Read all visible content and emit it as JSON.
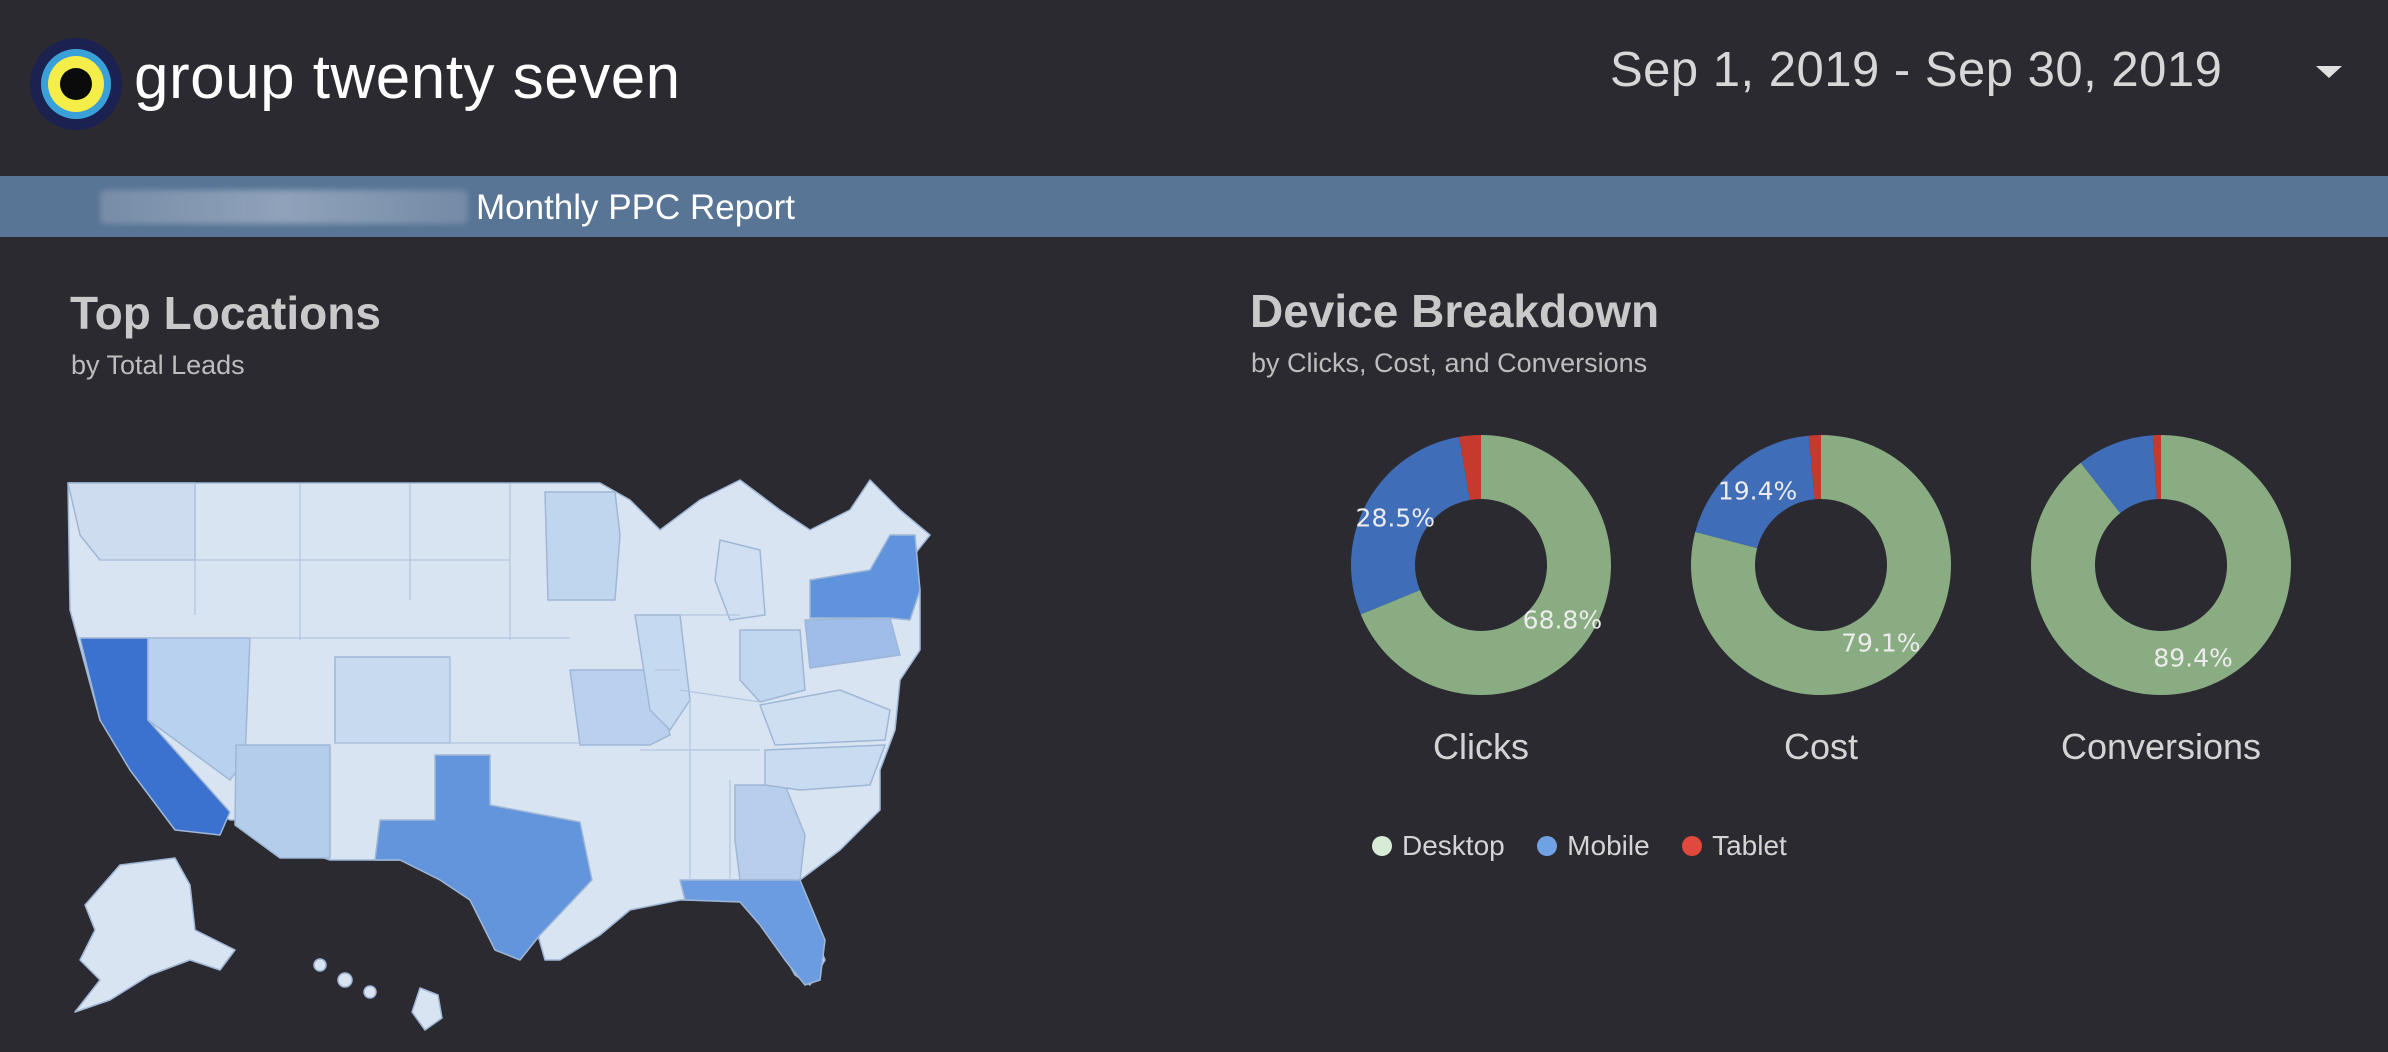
{
  "header": {
    "brand_name": "group twenty seven",
    "date_range": "Sep 1, 2019 - Sep 30, 2019"
  },
  "banner": {
    "title": "Monthly PPC Report"
  },
  "top_locations": {
    "title": "Top Locations",
    "subtitle": "by Total Leads"
  },
  "device_breakdown": {
    "title": "Device Breakdown",
    "subtitle": "by Clicks, Cost, and Conversions"
  },
  "colors": {
    "desktop": "#8aac82",
    "mobile": "#3f6db8",
    "tablet": "#c63a2e",
    "legend_desktop": "#d8ebd4",
    "legend_mobile": "#6fa2e4",
    "legend_tablet": "#e0493b",
    "banner": "#587596"
  },
  "chart_data": [
    {
      "type": "pie",
      "title": "Clicks",
      "categories": [
        "Desktop",
        "Mobile",
        "Tablet"
      ],
      "values": [
        68.8,
        28.5,
        2.7
      ],
      "labels": [
        "68.8%",
        "28.5%",
        ""
      ]
    },
    {
      "type": "pie",
      "title": "Cost",
      "categories": [
        "Desktop",
        "Mobile",
        "Tablet"
      ],
      "values": [
        79.1,
        19.4,
        1.5
      ],
      "labels": [
        "79.1%",
        "19.4%",
        ""
      ]
    },
    {
      "type": "pie",
      "title": "Conversions",
      "categories": [
        "Desktop",
        "Mobile",
        "Tablet"
      ],
      "values": [
        89.4,
        9.6,
        1.0
      ],
      "labels": [
        "89.4%",
        "",
        ""
      ]
    }
  ],
  "legend": [
    {
      "label": "Desktop",
      "color_key": "legend_desktop"
    },
    {
      "label": "Mobile",
      "color_key": "legend_mobile"
    },
    {
      "label": "Tablet",
      "color_key": "legend_tablet"
    }
  ]
}
